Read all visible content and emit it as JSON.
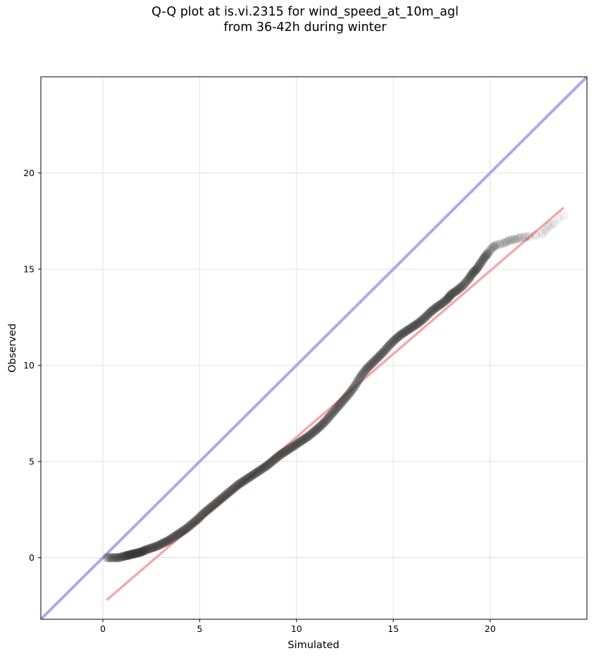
{
  "chart_data": {
    "type": "scatter",
    "title_line1": "Q-Q plot at is.vi.2315 for wind_speed_at_10m_agl",
    "title_line2": "from 36-42h during winter",
    "xlabel": "Simulated",
    "ylabel": "Observed",
    "xlim": [
      -3.2,
      25.0
    ],
    "ylim": [
      -3.2,
      25.0
    ],
    "xticks": [
      0,
      5,
      10,
      15,
      20
    ],
    "yticks": [
      0,
      5,
      10,
      15,
      20
    ],
    "grid": true,
    "reference_line": {
      "name": "1:1",
      "color": "#aaaaee",
      "from": [
        -3.2,
        -3.2
      ],
      "to": [
        25.0,
        25.0
      ]
    },
    "fit_line": {
      "color": "#f4a9a9",
      "from": [
        0.2,
        -2.2
      ],
      "to": [
        23.8,
        18.2
      ]
    },
    "point_color": "#333333",
    "points": [
      [
        0.2,
        0.0
      ],
      [
        0.4,
        0.0
      ],
      [
        0.6,
        0.0
      ],
      [
        0.8,
        0.0
      ],
      [
        1.0,
        0.05
      ],
      [
        1.2,
        0.1
      ],
      [
        1.4,
        0.15
      ],
      [
        1.6,
        0.2
      ],
      [
        1.8,
        0.25
      ],
      [
        2.0,
        0.3
      ],
      [
        2.2,
        0.4
      ],
      [
        2.5,
        0.5
      ],
      [
        2.8,
        0.6
      ],
      [
        3.1,
        0.75
      ],
      [
        3.4,
        0.9
      ],
      [
        3.7,
        1.1
      ],
      [
        4.0,
        1.3
      ],
      [
        4.3,
        1.5
      ],
      [
        4.6,
        1.75
      ],
      [
        4.9,
        2.0
      ],
      [
        5.2,
        2.3
      ],
      [
        5.5,
        2.55
      ],
      [
        5.8,
        2.8
      ],
      [
        6.1,
        3.05
      ],
      [
        6.4,
        3.3
      ],
      [
        6.7,
        3.55
      ],
      [
        7.0,
        3.8
      ],
      [
        7.3,
        4.0
      ],
      [
        7.6,
        4.2
      ],
      [
        7.9,
        4.4
      ],
      [
        8.2,
        4.6
      ],
      [
        8.5,
        4.8
      ],
      [
        8.8,
        5.05
      ],
      [
        9.1,
        5.3
      ],
      [
        9.4,
        5.5
      ],
      [
        9.7,
        5.7
      ],
      [
        10.0,
        5.9
      ],
      [
        10.3,
        6.1
      ],
      [
        10.6,
        6.3
      ],
      [
        10.9,
        6.55
      ],
      [
        11.2,
        6.8
      ],
      [
        11.5,
        7.1
      ],
      [
        11.8,
        7.45
      ],
      [
        12.1,
        7.8
      ],
      [
        12.4,
        8.15
      ],
      [
        12.7,
        8.5
      ],
      [
        13.0,
        8.9
      ],
      [
        13.3,
        9.4
      ],
      [
        13.6,
        9.8
      ],
      [
        13.9,
        10.1
      ],
      [
        14.2,
        10.4
      ],
      [
        14.5,
        10.7
      ],
      [
        14.8,
        11.05
      ],
      [
        15.1,
        11.35
      ],
      [
        15.4,
        11.6
      ],
      [
        15.7,
        11.8
      ],
      [
        16.0,
        12.0
      ],
      [
        16.3,
        12.2
      ],
      [
        16.6,
        12.45
      ],
      [
        16.9,
        12.75
      ],
      [
        17.2,
        13.0
      ],
      [
        17.5,
        13.2
      ],
      [
        17.8,
        13.45
      ],
      [
        18.0,
        13.7
      ],
      [
        18.3,
        13.9
      ],
      [
        18.6,
        14.15
      ],
      [
        18.9,
        14.5
      ],
      [
        19.1,
        14.8
      ],
      [
        19.3,
        15.0
      ],
      [
        19.5,
        15.3
      ],
      [
        19.7,
        15.6
      ],
      [
        19.9,
        15.85
      ],
      [
        20.1,
        16.1
      ],
      [
        20.3,
        16.25
      ],
      [
        20.7,
        16.35
      ],
      [
        21.0,
        16.5
      ],
      [
        21.3,
        16.55
      ],
      [
        21.6,
        16.65
      ],
      [
        22.0,
        16.7
      ],
      [
        22.7,
        16.85
      ],
      [
        23.0,
        17.2
      ],
      [
        23.3,
        17.4
      ],
      [
        23.8,
        17.8
      ]
    ]
  }
}
